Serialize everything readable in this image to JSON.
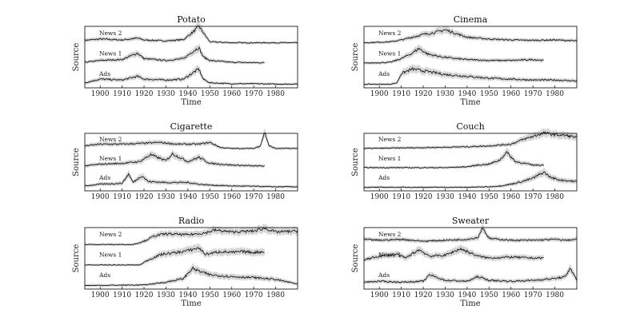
{
  "chart_data": [
    {
      "type": "line",
      "title": "Potato",
      "xlabel": "Time",
      "ylabel": "Source",
      "xlim": [
        1893,
        1990
      ],
      "xticks": [
        "1900",
        "1910",
        "1920",
        "1930",
        "1940",
        "1950",
        "1960",
        "1970",
        "1980"
      ],
      "series": [
        {
          "name": "News 2",
          "x": [
            1893,
            1900,
            1910,
            1917,
            1920,
            1930,
            1938,
            1943,
            1945,
            1947,
            1950,
            1960,
            1970,
            1980,
            1990
          ],
          "values": [
            0.18,
            0.25,
            0.2,
            0.3,
            0.2,
            0.15,
            0.22,
            0.7,
            0.95,
            0.6,
            0.1,
            0.05,
            0.05,
            0.05,
            0.05
          ]
        },
        {
          "name": "News 1",
          "x": [
            1893,
            1900,
            1910,
            1917,
            1920,
            1930,
            1938,
            1943,
            1945,
            1947,
            1950,
            1960,
            1970,
            1975
          ],
          "values": [
            0.1,
            0.2,
            0.25,
            0.6,
            0.3,
            0.2,
            0.3,
            0.75,
            0.9,
            0.4,
            0.2,
            0.1,
            0.08,
            0.08
          ]
        },
        {
          "name": "Ads",
          "x": [
            1893,
            1900,
            1910,
            1917,
            1920,
            1930,
            1938,
            1943,
            1945,
            1947,
            1950,
            1960,
            1970,
            1980,
            1990
          ],
          "values": [
            0.1,
            0.3,
            0.25,
            0.45,
            0.3,
            0.25,
            0.3,
            0.7,
            0.85,
            0.3,
            0.1,
            0.05,
            0.05,
            0.03,
            0.03
          ]
        }
      ]
    },
    {
      "type": "line",
      "title": "Cinema",
      "xlabel": "Time",
      "ylabel": "Source",
      "xlim": [
        1893,
        1990
      ],
      "xticks": [
        "1900",
        "1910",
        "1920",
        "1930",
        "1940",
        "1950",
        "1960",
        "1970",
        "1980"
      ],
      "series": [
        {
          "name": "News 2",
          "x": [
            1893,
            1905,
            1910,
            1915,
            1920,
            1925,
            1930,
            1935,
            1940,
            1950,
            1960,
            1970,
            1980,
            1990
          ],
          "values": [
            0.05,
            0.1,
            0.2,
            0.35,
            0.5,
            0.6,
            0.75,
            0.55,
            0.35,
            0.25,
            0.2,
            0.18,
            0.2,
            0.15
          ]
        },
        {
          "name": "News 1",
          "x": [
            1893,
            1905,
            1910,
            1915,
            1918,
            1922,
            1928,
            1935,
            1940,
            1950,
            1960,
            1970,
            1975
          ],
          "values": [
            0.05,
            0.1,
            0.3,
            0.6,
            0.85,
            0.55,
            0.4,
            0.3,
            0.25,
            0.2,
            0.2,
            0.25,
            0.2
          ]
        },
        {
          "name": "Ads",
          "x": [
            1893,
            1905,
            1908,
            1910,
            1915,
            1920,
            1925,
            1930,
            1940,
            1950,
            1960,
            1970,
            1980,
            1990
          ],
          "values": [
            0.02,
            0.02,
            0.1,
            0.6,
            0.85,
            0.75,
            0.65,
            0.55,
            0.45,
            0.35,
            0.3,
            0.25,
            0.25,
            0.2
          ]
        }
      ]
    },
    {
      "type": "line",
      "title": "Cigarette",
      "xlabel": "",
      "ylabel": "Source",
      "xlim": [
        1893,
        1990
      ],
      "xticks": [
        "1900",
        "1910",
        "1920",
        "1930",
        "1940",
        "1950",
        "1960",
        "1970",
        "1980"
      ],
      "series": [
        {
          "name": "News 2",
          "x": [
            1893,
            1900,
            1910,
            1920,
            1927,
            1935,
            1945,
            1950,
            1955,
            1960,
            1970,
            1973,
            1975,
            1977,
            1980,
            1990
          ],
          "values": [
            0.2,
            0.3,
            0.3,
            0.35,
            0.4,
            0.3,
            0.3,
            0.4,
            0.1,
            0.05,
            0.05,
            0.2,
            1.0,
            0.2,
            0.05,
            0.05
          ]
        },
        {
          "name": "News 1",
          "x": [
            1893,
            1900,
            1910,
            1918,
            1923,
            1930,
            1933,
            1940,
            1945,
            1950,
            1960,
            1970,
            1975
          ],
          "values": [
            0.15,
            0.25,
            0.3,
            0.4,
            0.8,
            0.45,
            0.85,
            0.4,
            0.65,
            0.3,
            0.2,
            0.15,
            0.15
          ]
        },
        {
          "name": "Ads",
          "x": [
            1893,
            1900,
            1910,
            1913,
            1915,
            1919,
            1922,
            1930,
            1940,
            1945,
            1950,
            1960,
            1970,
            1980,
            1990
          ],
          "values": [
            0.1,
            0.2,
            0.25,
            0.8,
            0.3,
            0.7,
            0.35,
            0.3,
            0.3,
            0.2,
            0.15,
            0.1,
            0.08,
            0.05,
            0.05
          ]
        }
      ]
    },
    {
      "type": "line",
      "title": "Couch",
      "xlabel": "",
      "ylabel": "Source",
      "xlim": [
        1893,
        1990
      ],
      "xticks": [
        "1900",
        "1910",
        "1920",
        "1930",
        "1940",
        "1950",
        "1960",
        "1970",
        "1980"
      ],
      "series": [
        {
          "name": "News 2",
          "x": [
            1893,
            1910,
            1920,
            1930,
            1940,
            1950,
            1960,
            1965,
            1970,
            1975,
            1980,
            1985,
            1990
          ],
          "values": [
            0.05,
            0.08,
            0.1,
            0.12,
            0.15,
            0.2,
            0.3,
            0.55,
            0.75,
            0.95,
            0.85,
            0.8,
            0.7
          ]
        },
        {
          "name": "News 1",
          "x": [
            1893,
            1910,
            1920,
            1930,
            1940,
            1945,
            1950,
            1955,
            1958,
            1962,
            1970,
            1975
          ],
          "values": [
            0.05,
            0.05,
            0.05,
            0.05,
            0.1,
            0.2,
            0.25,
            0.5,
            0.95,
            0.4,
            0.2,
            0.2
          ]
        },
        {
          "name": "Ads",
          "x": [
            1893,
            1920,
            1940,
            1950,
            1955,
            1960,
            1965,
            1970,
            1975,
            1978,
            1982,
            1990
          ],
          "values": [
            0.02,
            0.02,
            0.02,
            0.05,
            0.1,
            0.2,
            0.35,
            0.55,
            0.9,
            0.6,
            0.45,
            0.35
          ]
        }
      ]
    },
    {
      "type": "line",
      "title": "Radio",
      "xlabel": "Time",
      "ylabel": "Source",
      "xlim": [
        1893,
        1990
      ],
      "xticks": [
        "1900",
        "1910",
        "1920",
        "1930",
        "1940",
        "1950",
        "1960",
        "1970",
        "1980"
      ],
      "series": [
        {
          "name": "News 2",
          "x": [
            1893,
            1915,
            1920,
            1925,
            1930,
            1940,
            1948,
            1952,
            1960,
            1970,
            1975,
            1980,
            1990
          ],
          "values": [
            0.02,
            0.02,
            0.2,
            0.5,
            0.6,
            0.55,
            0.65,
            0.8,
            0.7,
            0.75,
            0.9,
            0.7,
            0.75
          ]
        },
        {
          "name": "News 1",
          "x": [
            1893,
            1918,
            1922,
            1928,
            1935,
            1940,
            1945,
            1948,
            1955,
            1960,
            1965,
            1970,
            1975
          ],
          "values": [
            0.02,
            0.02,
            0.3,
            0.6,
            0.7,
            0.8,
            0.95,
            0.6,
            0.75,
            0.7,
            0.75,
            0.7,
            0.75
          ]
        },
        {
          "name": "Ads",
          "x": [
            1893,
            1920,
            1930,
            1938,
            1942,
            1945,
            1950,
            1955,
            1960,
            1970,
            1980,
            1990
          ],
          "values": [
            0.02,
            0.05,
            0.2,
            0.4,
            0.95,
            0.8,
            0.6,
            0.55,
            0.5,
            0.45,
            0.35,
            0.1
          ]
        }
      ]
    },
    {
      "type": "line",
      "title": "Sweater",
      "xlabel": "Time",
      "ylabel": "Source",
      "xlim": [
        1893,
        1990
      ],
      "xticks": [
        "1900",
        "1910",
        "1920",
        "1930",
        "1940",
        "1950",
        "1960",
        "1970",
        "1980"
      ],
      "series": [
        {
          "name": "News 2",
          "x": [
            1893,
            1900,
            1910,
            1920,
            1930,
            1940,
            1945,
            1947,
            1950,
            1960,
            1970,
            1980,
            1985,
            1990
          ],
          "values": [
            0.3,
            0.25,
            0.3,
            0.2,
            0.25,
            0.3,
            0.4,
            0.95,
            0.35,
            0.25,
            0.25,
            0.3,
            0.25,
            0.3
          ]
        },
        {
          "name": "News 1",
          "x": [
            1893,
            1900,
            1908,
            1912,
            1918,
            1923,
            1930,
            1937,
            1945,
            1950,
            1960,
            1970,
            1975
          ],
          "values": [
            0.3,
            0.5,
            0.6,
            0.4,
            0.85,
            0.5,
            0.55,
            0.9,
            0.5,
            0.4,
            0.45,
            0.4,
            0.4
          ]
        },
        {
          "name": "Ads",
          "x": [
            1893,
            1900,
            1910,
            1920,
            1923,
            1930,
            1940,
            1945,
            1950,
            1960,
            1970,
            1980,
            1985,
            1987,
            1990
          ],
          "values": [
            0.2,
            0.25,
            0.2,
            0.25,
            0.6,
            0.3,
            0.25,
            0.5,
            0.3,
            0.25,
            0.3,
            0.4,
            0.5,
            1.0,
            0.3
          ]
        }
      ]
    }
  ]
}
